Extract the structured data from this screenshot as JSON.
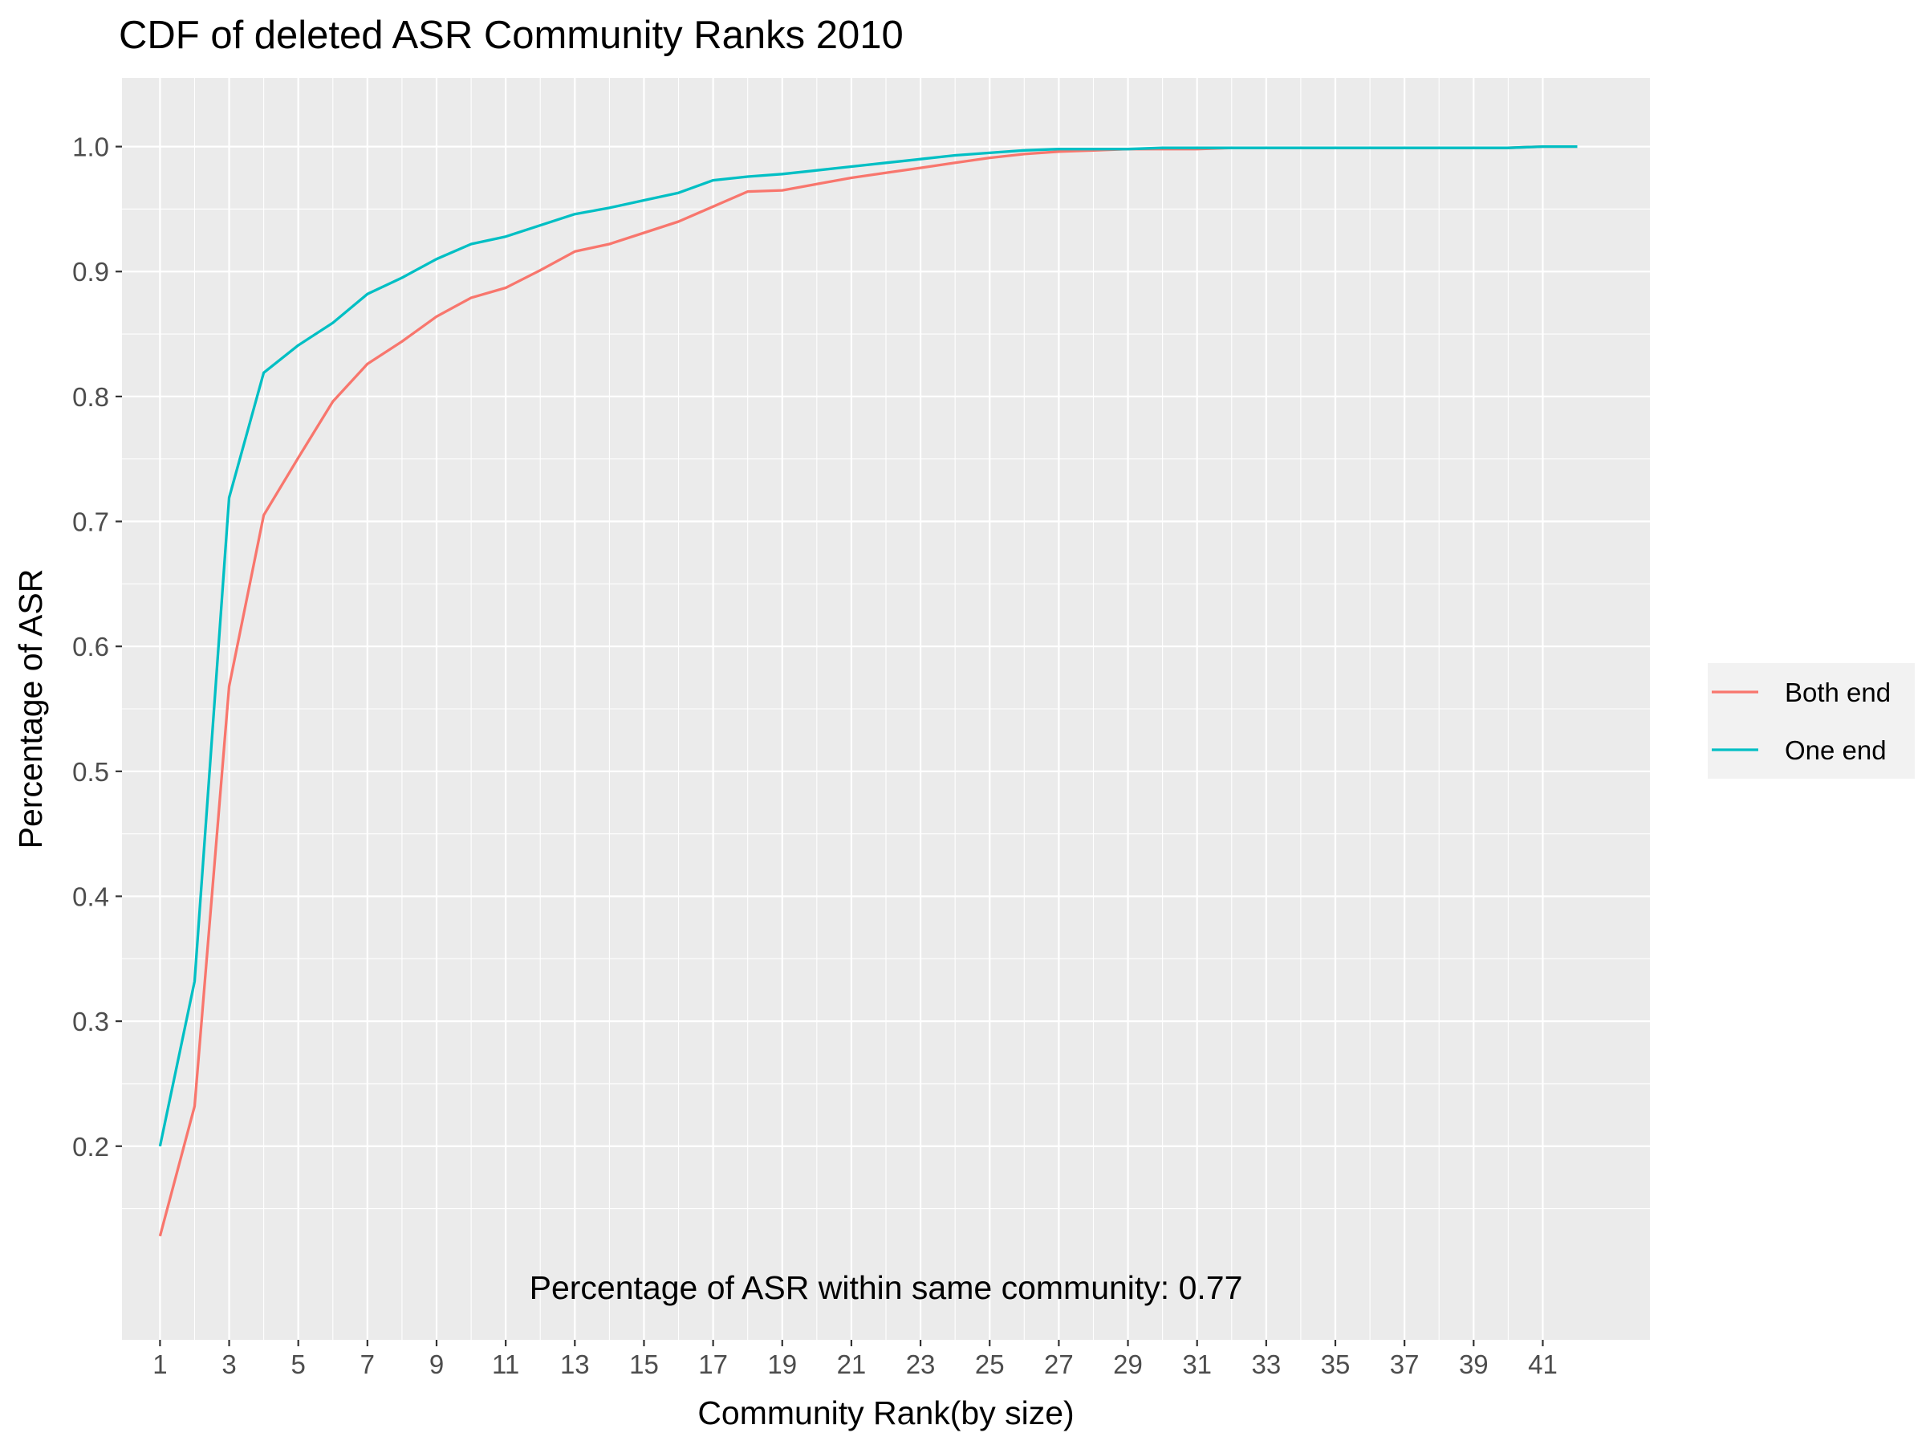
{
  "chart_data": {
    "type": "line",
    "title": "CDF of deleted ASR Community Ranks 2010",
    "xlabel": "Community Rank(by size)",
    "ylabel": "Percentage of ASR",
    "annotation": "Percentage of ASR within same community: 0.77",
    "xlim": [
      -0.1,
      44.1
    ],
    "ylim": [
      0.045,
      1.055
    ],
    "x_ticks": [
      1,
      3,
      5,
      7,
      9,
      11,
      13,
      15,
      17,
      19,
      21,
      23,
      25,
      27,
      29,
      31,
      33,
      35,
      37,
      39,
      41
    ],
    "y_ticks": [
      0.2,
      0.3,
      0.4,
      0.5,
      0.6,
      0.7,
      0.8,
      0.9,
      1.0
    ],
    "y_tick_labels": [
      "0.2",
      "0.3",
      "0.4",
      "0.5",
      "0.6",
      "0.7",
      "0.8",
      "0.9",
      "1.0"
    ],
    "grid": true,
    "legend_position": "right",
    "x": [
      1,
      2,
      3,
      4,
      5,
      6,
      7,
      8,
      9,
      10,
      11,
      12,
      13,
      14,
      15,
      16,
      17,
      18,
      19,
      20,
      21,
      22,
      23,
      24,
      25,
      26,
      27,
      28,
      29,
      30,
      31,
      32,
      33,
      34,
      35,
      36,
      37,
      38,
      39,
      40,
      41,
      42
    ],
    "series": [
      {
        "name": "Both end",
        "color": "#F8766D",
        "values": [
          0.128,
          0.232,
          0.568,
          0.705,
          0.751,
          0.796,
          0.826,
          0.844,
          0.864,
          0.879,
          0.887,
          0.901,
          0.916,
          0.922,
          0.931,
          0.94,
          0.952,
          0.964,
          0.965,
          0.97,
          0.975,
          0.979,
          0.983,
          0.987,
          0.991,
          0.994,
          0.996,
          0.997,
          0.998,
          0.998,
          0.998,
          0.999,
          0.999,
          0.999,
          0.999,
          0.999,
          0.999,
          0.999,
          0.999,
          0.999,
          1.0,
          1.0
        ]
      },
      {
        "name": "One end",
        "color": "#00BFC4",
        "values": [
          0.2,
          0.332,
          0.719,
          0.819,
          0.841,
          0.859,
          0.882,
          0.895,
          0.91,
          0.922,
          0.928,
          0.937,
          0.946,
          0.951,
          0.957,
          0.963,
          0.973,
          0.976,
          0.978,
          0.981,
          0.984,
          0.987,
          0.99,
          0.993,
          0.995,
          0.997,
          0.998,
          0.998,
          0.998,
          0.999,
          0.999,
          0.999,
          0.999,
          0.999,
          0.999,
          0.999,
          0.999,
          0.999,
          0.999,
          0.999,
          1.0,
          1.0
        ]
      }
    ]
  }
}
